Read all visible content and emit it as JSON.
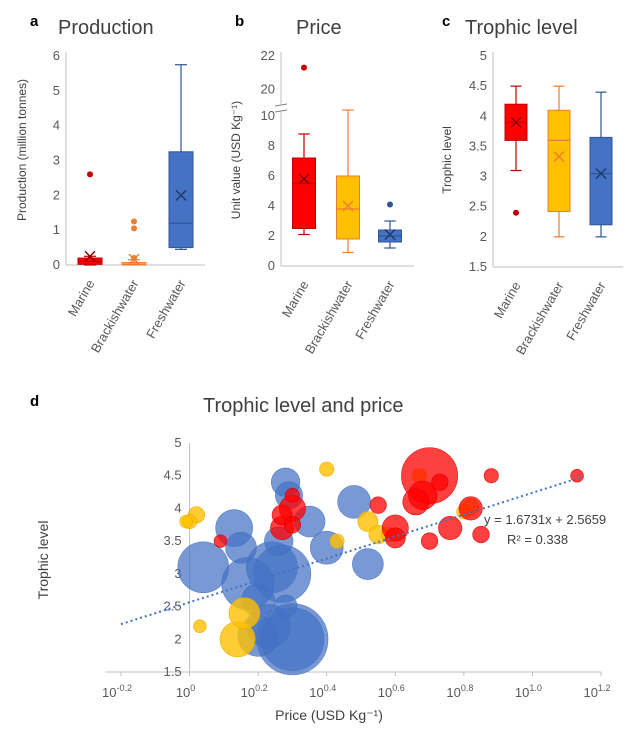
{
  "panels": {
    "a": {
      "letter": "a",
      "title": "Production",
      "ylabel": "Production (million tonnes)"
    },
    "b": {
      "letter": "b",
      "title": "Price",
      "ylabel": "Unit value (USD Kg⁻¹)"
    },
    "c": {
      "letter": "c",
      "title": "Trophic level",
      "ylabel": "Trophic level"
    },
    "d": {
      "letter": "d",
      "title": "Trophic level and price",
      "xlabel": "Price (USD Kg⁻¹)",
      "ylabel": "Trophic level",
      "equation": "y = 1.6731x + 2.5659",
      "r2": "R² = 0.338"
    }
  },
  "colors": {
    "marine": "#ff0000",
    "brackish": "#ffc000",
    "freshwater": "#4472c4",
    "marine_edge": "#c00000",
    "brackish_edge": "#ed7d31",
    "freshwater_edge": "#2f5597",
    "trend": "#4472c4"
  },
  "chart_data": [
    {
      "type": "box",
      "id": "a",
      "title": "Production",
      "ylabel": "Production (million tonnes)",
      "categories": [
        "Marine",
        "Brackishwater",
        "Freshwater"
      ],
      "ylim": [
        0,
        6
      ],
      "yticks": [
        0,
        1,
        2,
        3,
        4,
        5,
        6
      ],
      "boxes": [
        {
          "min": 0.0,
          "q1": 0.02,
          "median": 0.1,
          "q3": 0.2,
          "max": 0.25,
          "mean": 0.25,
          "outliers": [
            2.6
          ]
        },
        {
          "min": 0.0,
          "q1": 0.0,
          "median": 0.02,
          "q3": 0.07,
          "max": 0.15,
          "mean": 0.17,
          "outliers": [
            1.25,
            1.05,
            0.2
          ]
        },
        {
          "min": 0.45,
          "q1": 0.5,
          "median": 1.2,
          "q3": 3.25,
          "max": 5.75,
          "mean": 2.0,
          "outliers": []
        }
      ]
    },
    {
      "type": "box",
      "id": "b",
      "title": "Price",
      "ylabel": "Unit value (USD Kg⁻¹)",
      "categories": [
        "Marine",
        "Brackishwater",
        "Freshwater"
      ],
      "ylim": [
        0,
        22
      ],
      "axis_break": [
        10.7,
        19
      ],
      "yticks": [
        0,
        2,
        4,
        6,
        8,
        10,
        20,
        22
      ],
      "boxes": [
        {
          "min": 2.1,
          "q1": 2.5,
          "median": 5.5,
          "q3": 7.2,
          "max": 8.8,
          "mean": 5.8,
          "outliers": [
            21.3
          ]
        },
        {
          "min": 0.9,
          "q1": 1.8,
          "median": 3.8,
          "q3": 6.0,
          "max": 10.4,
          "mean": 4.0,
          "outliers": []
        },
        {
          "min": 1.2,
          "q1": 1.6,
          "median": 2.0,
          "q3": 2.4,
          "max": 3.0,
          "mean": 2.1,
          "outliers": [
            4.1
          ]
        }
      ]
    },
    {
      "type": "box",
      "id": "c",
      "title": "Trophic level",
      "ylabel": "Trophic level",
      "categories": [
        "Marine",
        "Brackishwater",
        "Freshwater"
      ],
      "ylim": [
        1.5,
        5
      ],
      "yticks": [
        1.5,
        2,
        2.5,
        3,
        3.5,
        4,
        4.5,
        5
      ],
      "boxes": [
        {
          "min": 3.1,
          "q1": 3.6,
          "median": 3.9,
          "q3": 4.2,
          "max": 4.5,
          "mean": 3.9,
          "outliers": [
            2.4
          ]
        },
        {
          "min": 2.0,
          "q1": 2.42,
          "median": 3.6,
          "q3": 4.1,
          "max": 4.5,
          "mean": 3.33,
          "outliers": []
        },
        {
          "min": 2.0,
          "q1": 2.2,
          "median": 3.05,
          "q3": 3.65,
          "max": 4.4,
          "mean": 3.05,
          "outliers": []
        }
      ]
    },
    {
      "type": "scatter",
      "id": "d",
      "title": "Trophic level and price",
      "xlabel": "Price (USD Kg⁻¹)",
      "ylabel": "Trophic level",
      "x_scale": "log10",
      "xlim": [
        -0.2,
        1.2
      ],
      "xticks": [
        "10^-0.2",
        "10^0",
        "10^0.2",
        "10^0.4",
        "10^0.6",
        "10^0.8",
        "10^1.0",
        "10^1.2"
      ],
      "ylim": [
        1.5,
        5
      ],
      "yticks": [
        1.5,
        2,
        2.5,
        3,
        3.5,
        4,
        4.5,
        5
      ],
      "trendline": {
        "slope": 1.6731,
        "intercept": 2.5659,
        "x_range": [
          -0.2,
          1.15
        ],
        "equation": "y = 1.6731x + 2.5659",
        "r2": 0.338
      },
      "series": [
        {
          "name": "Marine",
          "points": [
            {
              "log_price": 0.7,
              "trophic": 4.5,
              "size": 2.3
            },
            {
              "log_price": 0.68,
              "trophic": 4.2,
              "size": 0.6
            },
            {
              "log_price": 0.66,
              "trophic": 4.1,
              "size": 0.5
            },
            {
              "log_price": 0.73,
              "trophic": 4.4,
              "size": 0.2
            },
            {
              "log_price": 0.82,
              "trophic": 4.0,
              "size": 0.4
            },
            {
              "log_price": 0.76,
              "trophic": 3.7,
              "size": 0.4
            },
            {
              "log_price": 0.6,
              "trophic": 3.7,
              "size": 0.5
            },
            {
              "log_price": 0.6,
              "trophic": 3.55,
              "size": 0.3
            },
            {
              "log_price": 0.3,
              "trophic": 4.0,
              "size": 0.5
            },
            {
              "log_price": 0.27,
              "trophic": 3.9,
              "size": 0.3
            },
            {
              "log_price": 0.27,
              "trophic": 3.7,
              "size": 0.4
            },
            {
              "log_price": 0.3,
              "trophic": 3.75,
              "size": 0.2
            },
            {
              "log_price": 0.3,
              "trophic": 4.2,
              "size": 0.15
            },
            {
              "log_price": 0.55,
              "trophic": 4.05,
              "size": 0.2
            },
            {
              "log_price": 0.88,
              "trophic": 4.5,
              "size": 0.15
            },
            {
              "log_price": 1.13,
              "trophic": 4.5,
              "size": 0.12
            },
            {
              "log_price": 0.7,
              "trophic": 3.5,
              "size": 0.2
            },
            {
              "log_price": 0.85,
              "trophic": 3.6,
              "size": 0.2
            },
            {
              "log_price": 0.09,
              "trophic": 3.5,
              "size": 0.12
            }
          ]
        },
        {
          "name": "Brackishwater",
          "points": [
            {
              "log_price": 0.14,
              "trophic": 2.0,
              "size": 0.9
            },
            {
              "log_price": 0.16,
              "trophic": 2.4,
              "size": 0.7
            },
            {
              "log_price": 0.02,
              "trophic": 3.9,
              "size": 0.2
            },
            {
              "log_price": 0.0,
              "trophic": 3.8,
              "size": 0.15
            },
            {
              "log_price": 0.4,
              "trophic": 4.6,
              "size": 0.15
            },
            {
              "log_price": 0.52,
              "trophic": 3.8,
              "size": 0.3
            },
            {
              "log_price": 0.55,
              "trophic": 3.6,
              "size": 0.25
            },
            {
              "log_price": 0.82,
              "trophic": 4.02,
              "size": 0.2
            },
            {
              "log_price": 0.8,
              "trophic": 3.95,
              "size": 0.15
            },
            {
              "log_price": -0.01,
              "trophic": 3.8,
              "size": 0.12
            },
            {
              "log_price": 0.03,
              "trophic": 2.2,
              "size": 0.12
            },
            {
              "log_price": 0.43,
              "trophic": 3.5,
              "size": 0.15
            },
            {
              "log_price": 0.58,
              "trophic": 3.6,
              "size": 0.15
            },
            {
              "log_price": 0.67,
              "trophic": 4.5,
              "size": 0.15
            }
          ]
        },
        {
          "name": "Freshwater",
          "points": [
            {
              "log_price": 0.3,
              "trophic": 2.0,
              "size": 3.7
            },
            {
              "log_price": 0.3,
              "trophic": 2.0,
              "size": 2.9
            },
            {
              "log_price": 0.27,
              "trophic": 3.0,
              "size": 2.4
            },
            {
              "log_price": 0.24,
              "trophic": 3.1,
              "size": 1.9
            },
            {
              "log_price": 0.04,
              "trophic": 3.1,
              "size": 1.9
            },
            {
              "log_price": 0.17,
              "trophic": 2.85,
              "size": 2.0
            },
            {
              "log_price": 0.23,
              "trophic": 2.2,
              "size": 1.4
            },
            {
              "log_price": 0.2,
              "trophic": 2.05,
              "size": 1.2
            },
            {
              "log_price": 0.13,
              "trophic": 3.7,
              "size": 1.0
            },
            {
              "log_price": 0.15,
              "trophic": 3.4,
              "size": 0.7
            },
            {
              "log_price": 0.28,
              "trophic": 4.4,
              "size": 0.6
            },
            {
              "log_price": 0.29,
              "trophic": 4.2,
              "size": 0.55
            },
            {
              "log_price": 0.35,
              "trophic": 3.8,
              "size": 0.7
            },
            {
              "log_price": 0.26,
              "trophic": 3.5,
              "size": 0.6
            },
            {
              "log_price": 0.4,
              "trophic": 3.4,
              "size": 0.8
            },
            {
              "log_price": 0.48,
              "trophic": 4.1,
              "size": 0.8
            },
            {
              "log_price": 0.52,
              "trophic": 3.15,
              "size": 0.7
            },
            {
              "log_price": 0.2,
              "trophic": 2.6,
              "size": 0.8
            },
            {
              "log_price": 0.28,
              "trophic": 2.5,
              "size": 0.4
            }
          ]
        }
      ]
    }
  ]
}
